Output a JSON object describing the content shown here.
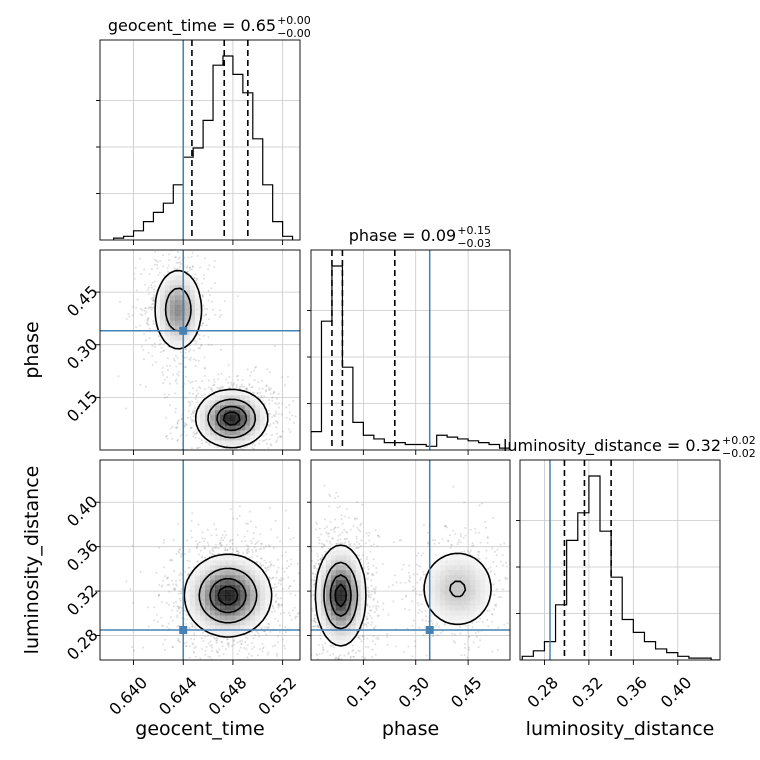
{
  "chart_data": {
    "type": "corner",
    "parameters": [
      "geocent_time",
      "phase",
      "luminosity_distance"
    ],
    "colors": {
      "truth": "#4682b4",
      "line": "#000000",
      "grid": "#c8c8c8",
      "scatter": "#808080"
    },
    "grid": true,
    "truths": {
      "geocent_time": 0.644,
      "phase": 0.34,
      "luminosity_distance": 0.285
    },
    "ranges": {
      "geocent_time": [
        0.6373,
        0.6534
      ],
      "phase": [
        0.0,
        0.57
      ],
      "luminosity_distance": [
        0.258,
        0.438
      ]
    },
    "ticks": {
      "geocent_time": {
        "values": [
          0.64,
          0.644,
          0.648,
          0.652
        ],
        "labels": [
          "0.640",
          "0.644",
          "0.648",
          "0.652"
        ]
      },
      "phase": {
        "values": [
          0.15,
          0.3,
          0.45
        ],
        "labels": [
          "0.15",
          "0.30",
          "0.45"
        ]
      },
      "luminosity_distance": {
        "values": [
          0.28,
          0.32,
          0.36,
          0.4
        ],
        "labels": [
          "0.28",
          "0.32",
          "0.36",
          "0.40"
        ]
      }
    },
    "axis_labels": [
      "geocent_time",
      "phase",
      "luminosity_distance"
    ],
    "titles": [
      {
        "param": "geocent_time",
        "main": "geocent_time = 0.65",
        "upper": "+0.00",
        "lower": "−0.00"
      },
      {
        "param": "phase",
        "main": "phase = 0.09",
        "upper": "+0.15",
        "lower": "−0.03"
      },
      {
        "param": "luminosity_distance",
        "main": "luminosity_distance = 0.32",
        "upper": "+0.02",
        "lower": "−0.02"
      }
    ],
    "quantiles": {
      "geocent_time": [
        0.6447,
        0.6473,
        0.6492
      ],
      "phase": [
        0.06,
        0.09,
        0.24
      ],
      "luminosity_distance": [
        0.298,
        0.316,
        0.34
      ]
    },
    "histograms": {
      "geocent_time": {
        "bins": [
          0.6384,
          0.6392,
          0.64,
          0.6408,
          0.6416,
          0.6424,
          0.6432,
          0.644,
          0.6448,
          0.6456,
          0.6464,
          0.6472,
          0.648,
          0.6488,
          0.6496,
          0.6504,
          0.6512,
          0.652
        ],
        "counts": [
          1,
          2,
          5,
          10,
          15,
          20,
          30,
          45,
          50,
          65,
          95,
          100,
          90,
          80,
          55,
          30,
          10,
          2
        ]
      },
      "phase": {
        "bins": [
          0.0,
          0.03,
          0.06,
          0.09,
          0.12,
          0.15,
          0.18,
          0.21,
          0.24,
          0.27,
          0.3,
          0.33,
          0.36,
          0.39,
          0.42,
          0.45,
          0.48,
          0.51,
          0.54
        ],
        "counts": [
          10,
          70,
          100,
          45,
          15,
          8,
          6,
          4,
          4,
          3,
          3,
          2,
          8,
          7,
          6,
          5,
          4,
          3,
          1
        ]
      },
      "luminosity_distance": {
        "bins": [
          0.26,
          0.27,
          0.28,
          0.29,
          0.3,
          0.31,
          0.32,
          0.33,
          0.34,
          0.35,
          0.36,
          0.37,
          0.38,
          0.39,
          0.4,
          0.41,
          0.42,
          0.43
        ],
        "counts": [
          2,
          5,
          10,
          30,
          65,
          80,
          100,
          70,
          45,
          22,
          15,
          10,
          6,
          4,
          2,
          1,
          1,
          0
        ]
      }
    },
    "pairs": [
      {
        "x": "geocent_time",
        "y": "phase",
        "modes": [
          {
            "x": 0.6479,
            "y": 0.09,
            "sx": 0.0014,
            "sy": 0.04,
            "w": 0.6
          },
          {
            "x": 0.6436,
            "y": 0.4,
            "sx": 0.001,
            "sy": 0.06,
            "w": 0.4
          }
        ]
      },
      {
        "x": "geocent_time",
        "y": "luminosity_distance",
        "modes": [
          {
            "x": 0.6476,
            "y": 0.316,
            "sx": 0.0017,
            "sy": 0.018,
            "w": 1.0
          }
        ]
      },
      {
        "x": "phase",
        "y": "luminosity_distance",
        "modes": [
          {
            "x": 0.085,
            "y": 0.316,
            "sx": 0.035,
            "sy": 0.022,
            "w": 0.7
          },
          {
            "x": 0.42,
            "y": 0.322,
            "sx": 0.06,
            "sy": 0.02,
            "w": 0.3
          }
        ]
      }
    ]
  }
}
